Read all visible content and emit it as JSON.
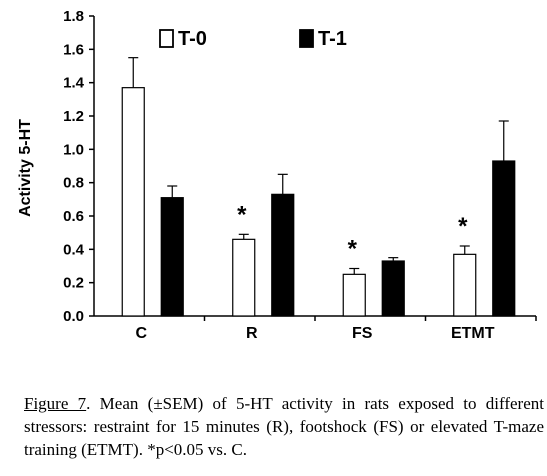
{
  "chart_data": {
    "type": "bar",
    "title": "",
    "xlabel": "",
    "ylabel": "Activity 5-HT",
    "ylim": [
      0,
      1.8
    ],
    "yticks": [
      "0.0",
      "0.2",
      "0.4",
      "0.6",
      "0.8",
      "1.0",
      "1.2",
      "1.4",
      "1.6",
      "1.8"
    ],
    "categories": [
      "C",
      "R",
      "FS",
      "ETMT"
    ],
    "series": [
      {
        "name": "T-0",
        "fill": "#ffffff",
        "values": [
          1.37,
          0.46,
          0.25,
          0.37
        ],
        "errors": [
          0.18,
          0.03,
          0.035,
          0.05
        ]
      },
      {
        "name": "T-1",
        "fill": "#000000",
        "values": [
          0.71,
          0.73,
          0.33,
          0.93
        ],
        "errors": [
          0.07,
          0.12,
          0.02,
          0.24
        ]
      }
    ],
    "significance_marks": [
      {
        "category": "R",
        "series": "T-0",
        "label": "*"
      },
      {
        "category": "FS",
        "series": "T-0",
        "label": "*"
      },
      {
        "category": "ETMT",
        "series": "T-0",
        "label": "*"
      }
    ],
    "grid": false,
    "legend": "top"
  },
  "caption": {
    "figure_label": "Figure 7",
    "text": ". Mean (±SEM) of 5-HT activity in rats exposed to different stressors: restraint for 15 minutes (R), footshock (FS) or elevated T-maze training (ETMT). *p<0.05 vs. C."
  }
}
